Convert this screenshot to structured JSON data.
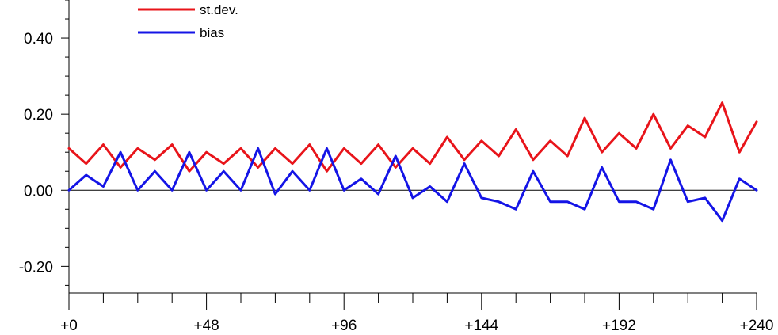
{
  "chart_data": {
    "type": "line",
    "xlim": [
      0,
      240
    ],
    "ylim": [
      -0.27,
      0.5
    ],
    "zero_line": 0,
    "x_ticks": [
      {
        "value": 0,
        "label": "+0"
      },
      {
        "value": 48,
        "label": "+48"
      },
      {
        "value": 96,
        "label": "+96"
      },
      {
        "value": 144,
        "label": "+144"
      },
      {
        "value": 192,
        "label": "+192"
      },
      {
        "value": 240,
        "label": "+240"
      }
    ],
    "y_ticks": [
      {
        "value": 0.4,
        "label": "0.40"
      },
      {
        "value": 0.2,
        "label": "0.20"
      },
      {
        "value": 0.0,
        "label": "0.00"
      },
      {
        "value": -0.2,
        "label": "-0.20"
      }
    ],
    "legend": {
      "placement": "top-left"
    },
    "x": [
      0,
      6,
      12,
      18,
      24,
      30,
      36,
      42,
      48,
      54,
      60,
      66,
      72,
      78,
      84,
      90,
      96,
      102,
      108,
      114,
      120,
      126,
      132,
      138,
      144,
      150,
      156,
      162,
      168,
      174,
      180,
      186,
      192,
      198,
      204,
      210,
      216,
      222,
      228,
      234,
      240
    ],
    "series": [
      {
        "name": "st.dev.",
        "color": "#e8141a",
        "values": [
          0.11,
          0.07,
          0.12,
          0.06,
          0.11,
          0.08,
          0.12,
          0.05,
          0.1,
          0.07,
          0.11,
          0.06,
          0.11,
          0.07,
          0.12,
          0.05,
          0.11,
          0.07,
          0.12,
          0.06,
          0.11,
          0.07,
          0.14,
          0.08,
          0.13,
          0.09,
          0.16,
          0.08,
          0.13,
          0.09,
          0.19,
          0.1,
          0.15,
          0.11,
          0.2,
          0.11,
          0.17,
          0.14,
          0.23,
          0.1,
          0.18
        ]
      },
      {
        "name": "bias",
        "color": "#1414e6",
        "values": [
          0.0,
          0.04,
          0.01,
          0.1,
          0.0,
          0.05,
          0.0,
          0.1,
          0.0,
          0.05,
          0.0,
          0.11,
          -0.01,
          0.05,
          0.0,
          0.11,
          0.0,
          0.03,
          -0.01,
          0.09,
          -0.02,
          0.01,
          -0.03,
          0.07,
          -0.02,
          -0.03,
          -0.05,
          0.05,
          -0.03,
          -0.03,
          -0.05,
          0.06,
          -0.03,
          -0.03,
          -0.05,
          0.08,
          -0.03,
          -0.02,
          -0.08,
          0.03,
          0.0
        ]
      }
    ]
  }
}
